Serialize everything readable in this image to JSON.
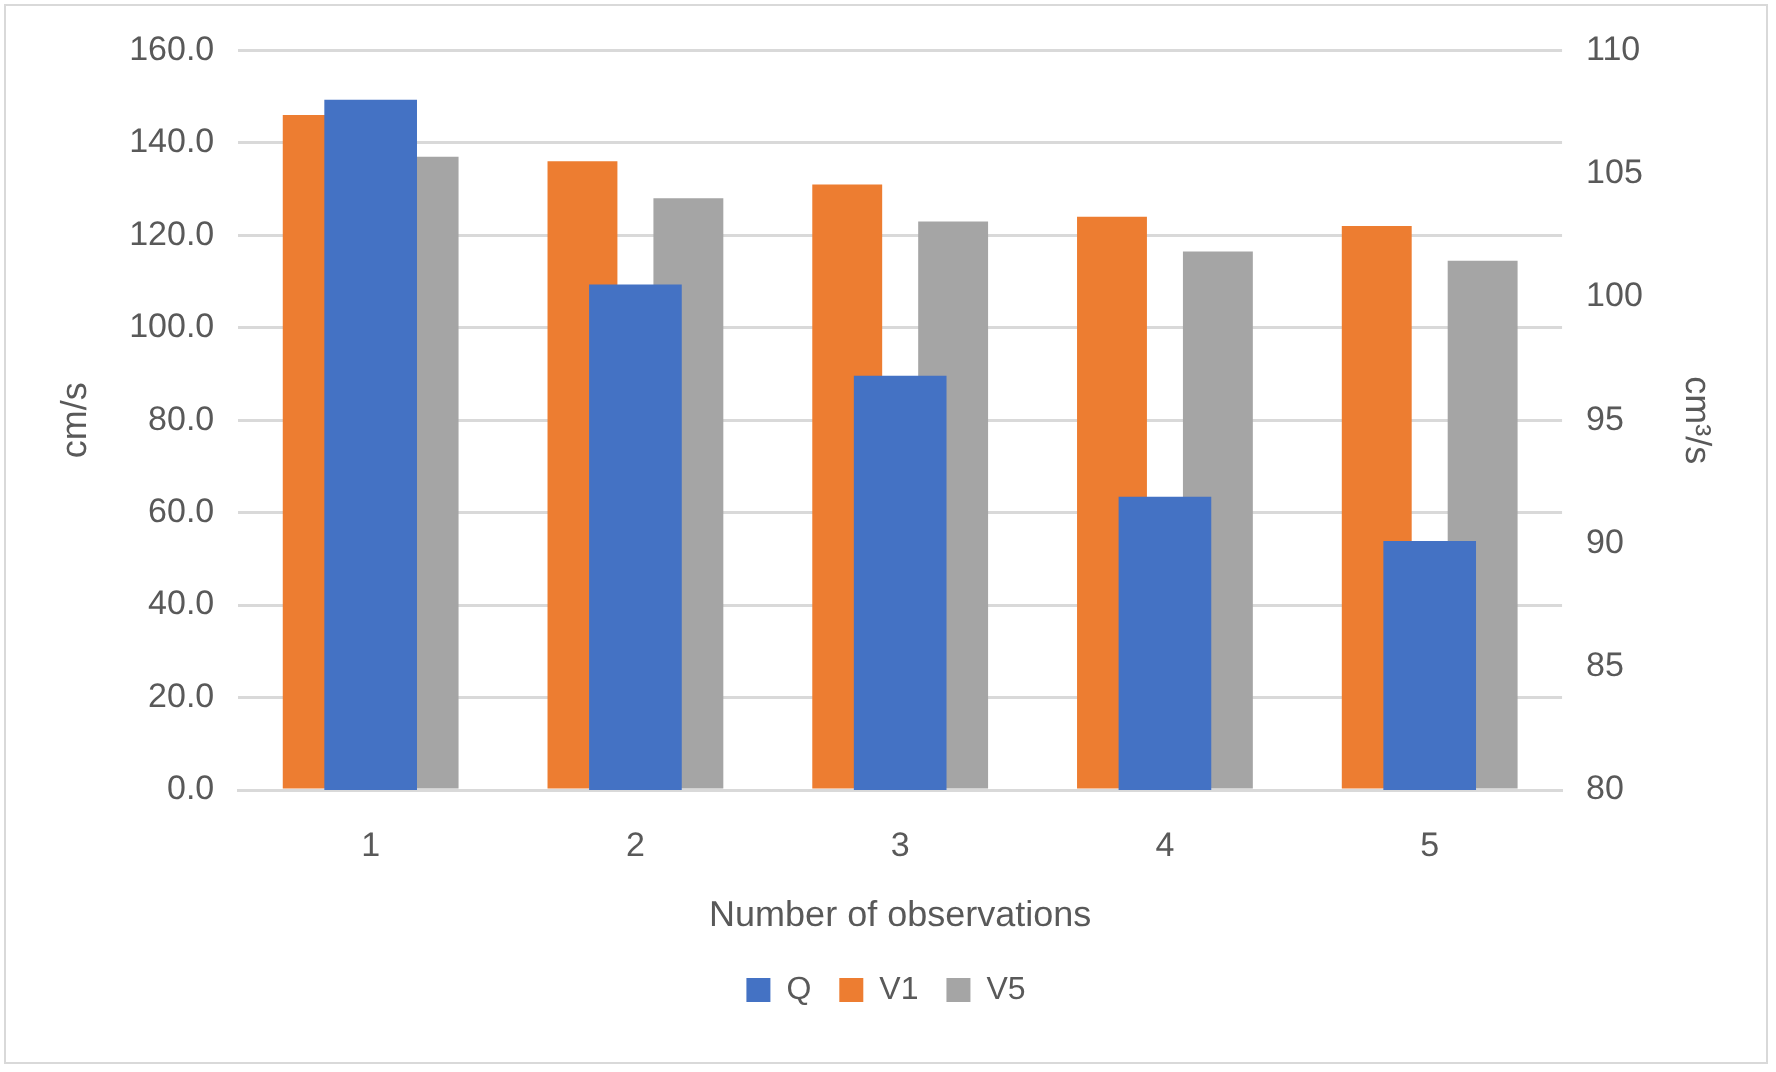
{
  "chart_data": {
    "type": "bar",
    "xlabel": "Number of observations",
    "ylabel": "cm/s",
    "y2label": "cm³/s",
    "categories": [
      "1",
      "2",
      "3",
      "4",
      "5"
    ],
    "series": [
      {
        "name": "V1",
        "color": "#ed7d31",
        "values": [
          146,
          136,
          131,
          124,
          122
        ]
      },
      {
        "name": "V5",
        "color": "#a5a5a5",
        "values": [
          137,
          128,
          123,
          116.5,
          114.5
        ]
      },
      {
        "name": "Q",
        "color": "#4472c4",
        "axis": "y2",
        "values": [
          108,
          100.5,
          96.8,
          91.9,
          90.1
        ]
      }
    ],
    "ylim": [
      0,
      160
    ],
    "yticks": [
      {
        "value": 0,
        "label": "0.0"
      },
      {
        "value": 20,
        "label": "20.0"
      },
      {
        "value": 40,
        "label": "40.0"
      },
      {
        "value": 60,
        "label": "60.0"
      },
      {
        "value": 80,
        "label": "80.0"
      },
      {
        "value": 100,
        "label": "100.0"
      },
      {
        "value": 120,
        "label": "120.0"
      },
      {
        "value": 140,
        "label": "140.0"
      },
      {
        "value": 160,
        "label": "160.0"
      }
    ],
    "y2lim": [
      80,
      110
    ],
    "y2ticks": [
      80,
      85,
      90,
      95,
      100,
      105,
      110
    ],
    "grid": "y",
    "legend": "bottom"
  }
}
